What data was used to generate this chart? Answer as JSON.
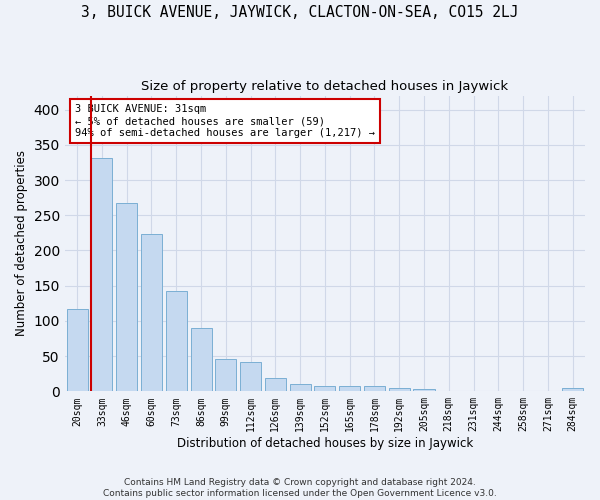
{
  "title": "3, BUICK AVENUE, JAYWICK, CLACTON-ON-SEA, CO15 2LJ",
  "subtitle": "Size of property relative to detached houses in Jaywick",
  "xlabel": "Distribution of detached houses by size in Jaywick",
  "ylabel": "Number of detached properties",
  "categories": [
    "20sqm",
    "33sqm",
    "46sqm",
    "60sqm",
    "73sqm",
    "86sqm",
    "99sqm",
    "112sqm",
    "126sqm",
    "139sqm",
    "152sqm",
    "165sqm",
    "178sqm",
    "192sqm",
    "205sqm",
    "218sqm",
    "231sqm",
    "244sqm",
    "258sqm",
    "271sqm",
    "284sqm"
  ],
  "values": [
    117,
    331,
    267,
    224,
    142,
    90,
    46,
    42,
    19,
    10,
    7,
    7,
    7,
    5,
    4,
    0,
    0,
    0,
    0,
    0,
    5
  ],
  "bar_color": "#c5d9f0",
  "bar_edge_color": "#7bafd4",
  "highlight_line_color": "#cc0000",
  "annotation_text": "3 BUICK AVENUE: 31sqm\n← 5% of detached houses are smaller (59)\n94% of semi-detached houses are larger (1,217) →",
  "annotation_box_color": "#ffffff",
  "annotation_box_edge_color": "#cc0000",
  "ylim": [
    0,
    420
  ],
  "grid_color": "#d0d8e8",
  "background_color": "#eef2f9",
  "footer_text": "Contains HM Land Registry data © Crown copyright and database right 2024.\nContains public sector information licensed under the Open Government Licence v3.0.",
  "title_fontsize": 10.5,
  "subtitle_fontsize": 9.5,
  "tick_fontsize": 7,
  "ylabel_fontsize": 8.5,
  "xlabel_fontsize": 8.5,
  "footer_fontsize": 6.5
}
